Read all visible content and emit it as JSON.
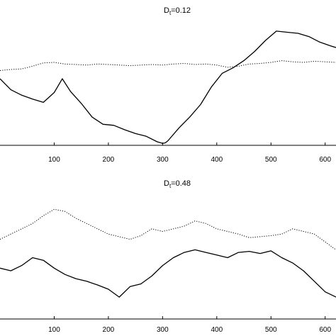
{
  "chart_data": [
    {
      "type": "line",
      "title_main": "D",
      "title_sub": "t",
      "title_value": "=0.12",
      "x_ticks": [
        "100",
        "200",
        "300",
        "400",
        "500",
        "600"
      ],
      "xlim": [
        0,
        620
      ],
      "ylim": [
        -1.2,
        1.0
      ],
      "grid": false,
      "series": [
        {
          "style": "solid",
          "color": "#000000",
          "x": [
            0,
            20,
            40,
            60,
            80,
            100,
            115,
            130,
            150,
            170,
            190,
            210,
            230,
            250,
            270,
            290,
            300,
            305,
            310,
            330,
            350,
            370,
            390,
            410,
            430,
            450,
            470,
            490,
            510,
            530,
            550,
            570,
            590,
            610,
            620
          ],
          "y": [
            -0.05,
            -0.25,
            -0.35,
            -0.42,
            -0.48,
            -0.3,
            -0.05,
            -0.28,
            -0.5,
            -0.75,
            -0.88,
            -0.9,
            -0.98,
            -1.05,
            -1.1,
            -1.2,
            -1.23,
            -1.22,
            -1.18,
            -0.95,
            -0.75,
            -0.52,
            -0.2,
            0.05,
            0.15,
            0.28,
            0.45,
            0.65,
            0.82,
            0.8,
            0.78,
            0.72,
            0.62,
            0.55,
            0.52
          ]
        },
        {
          "style": "dotted",
          "color": "#000000",
          "x": [
            0,
            20,
            40,
            60,
            80,
            100,
            120,
            140,
            160,
            180,
            200,
            220,
            240,
            260,
            280,
            300,
            320,
            340,
            360,
            380,
            400,
            420,
            440,
            460,
            480,
            500,
            520,
            540,
            560,
            580,
            600,
            620
          ],
          "y": [
            0.1,
            0.12,
            0.13,
            0.18,
            0.24,
            0.25,
            0.22,
            0.21,
            0.2,
            0.22,
            0.21,
            0.2,
            0.19,
            0.2,
            0.21,
            0.2,
            0.22,
            0.23,
            0.21,
            0.22,
            0.2,
            0.16,
            0.18,
            0.22,
            0.23,
            0.25,
            0.28,
            0.26,
            0.25,
            0.27,
            0.26,
            0.25
          ]
        }
      ]
    },
    {
      "type": "line",
      "title_main": "D",
      "title_sub": "t",
      "title_value": "=0.48",
      "x_ticks": [
        "100",
        "200",
        "300",
        "400",
        "500",
        "600"
      ],
      "xlim": [
        0,
        620
      ],
      "ylim": [
        -1.2,
        1.0
      ],
      "grid": false,
      "series": [
        {
          "style": "solid",
          "color": "#000000",
          "x": [
            0,
            20,
            40,
            60,
            80,
            100,
            120,
            140,
            160,
            180,
            200,
            220,
            240,
            260,
            280,
            300,
            320,
            340,
            360,
            380,
            400,
            420,
            440,
            460,
            480,
            500,
            520,
            540,
            560,
            580,
            600,
            620
          ],
          "y": [
            -0.3,
            -0.35,
            -0.25,
            -0.1,
            -0.15,
            -0.3,
            -0.42,
            -0.5,
            -0.55,
            -0.62,
            -0.7,
            -0.85,
            -0.65,
            -0.6,
            -0.45,
            -0.25,
            -0.1,
            0.0,
            0.05,
            0.0,
            -0.05,
            -0.1,
            0.0,
            0.02,
            -0.02,
            0.03,
            -0.1,
            -0.2,
            -0.35,
            -0.55,
            -0.75,
            -0.85
          ]
        },
        {
          "style": "dotted",
          "color": "#000000",
          "x": [
            0,
            20,
            40,
            60,
            80,
            100,
            120,
            140,
            160,
            180,
            200,
            220,
            240,
            260,
            280,
            300,
            320,
            340,
            360,
            380,
            400,
            420,
            440,
            460,
            480,
            500,
            520,
            540,
            560,
            580,
            600,
            620
          ],
          "y": [
            0.25,
            0.35,
            0.45,
            0.55,
            0.7,
            0.82,
            0.78,
            0.65,
            0.55,
            0.45,
            0.35,
            0.3,
            0.25,
            0.32,
            0.45,
            0.4,
            0.45,
            0.5,
            0.6,
            0.55,
            0.45,
            0.4,
            0.35,
            0.28,
            0.3,
            0.32,
            0.35,
            0.45,
            0.4,
            0.35,
            0.2,
            0.05
          ]
        }
      ]
    }
  ]
}
